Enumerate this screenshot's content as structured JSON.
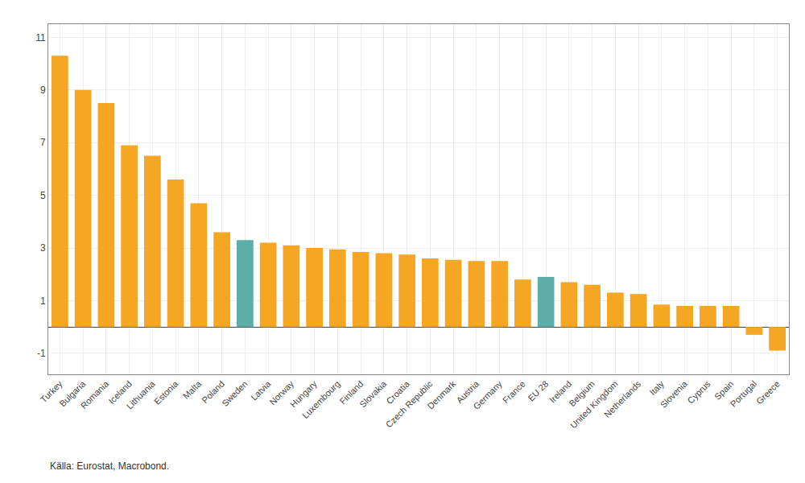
{
  "chart_data": {
    "type": "bar",
    "categories": [
      "Turkey",
      "Bulgaria",
      "Romania",
      "Iceland",
      "Lithuania",
      "Estonia",
      "Malta",
      "Poland",
      "Sweden",
      "Latvia",
      "Norway",
      "Hungary",
      "Luxembourg",
      "Finland",
      "Slovakia",
      "Croatia",
      "Czech Republic",
      "Denmark",
      "Austria",
      "Germany",
      "France",
      "EU 28",
      "Ireland",
      "Belgium",
      "United Kingdom",
      "Netherlands",
      "Italy",
      "Slovenia",
      "Cyprus",
      "Spain",
      "Portugal",
      "Greece"
    ],
    "values": [
      10.3,
      9.0,
      8.5,
      6.9,
      6.5,
      5.6,
      4.7,
      3.6,
      3.3,
      3.2,
      3.1,
      3.0,
      2.95,
      2.85,
      2.8,
      2.75,
      2.6,
      2.55,
      2.5,
      2.5,
      1.8,
      1.9,
      1.7,
      1.6,
      1.3,
      1.25,
      0.85,
      0.8,
      0.8,
      0.8,
      -0.3,
      -0.9
    ],
    "colors": [
      "#F5A623",
      "#F5A623",
      "#F5A623",
      "#F5A623",
      "#F5A623",
      "#F5A623",
      "#F5A623",
      "#F5A623",
      "#5DADA8",
      "#F5A623",
      "#F5A623",
      "#F5A623",
      "#F5A623",
      "#F5A623",
      "#F5A623",
      "#F5A623",
      "#F5A623",
      "#F5A623",
      "#F5A623",
      "#F5A623",
      "#F5A623",
      "#5DADA8",
      "#F5A623",
      "#F5A623",
      "#F5A623",
      "#F5A623",
      "#F5A623",
      "#F5A623",
      "#F5A623",
      "#F5A623",
      "#F5A623",
      "#F5A623"
    ],
    "ylim": [
      -1.8,
      11.5
    ],
    "yticks": [
      -1,
      1,
      3,
      5,
      7,
      9,
      11
    ],
    "grid": true,
    "annotations": [
      "Källa: Eurostat, Macrobond."
    ]
  }
}
